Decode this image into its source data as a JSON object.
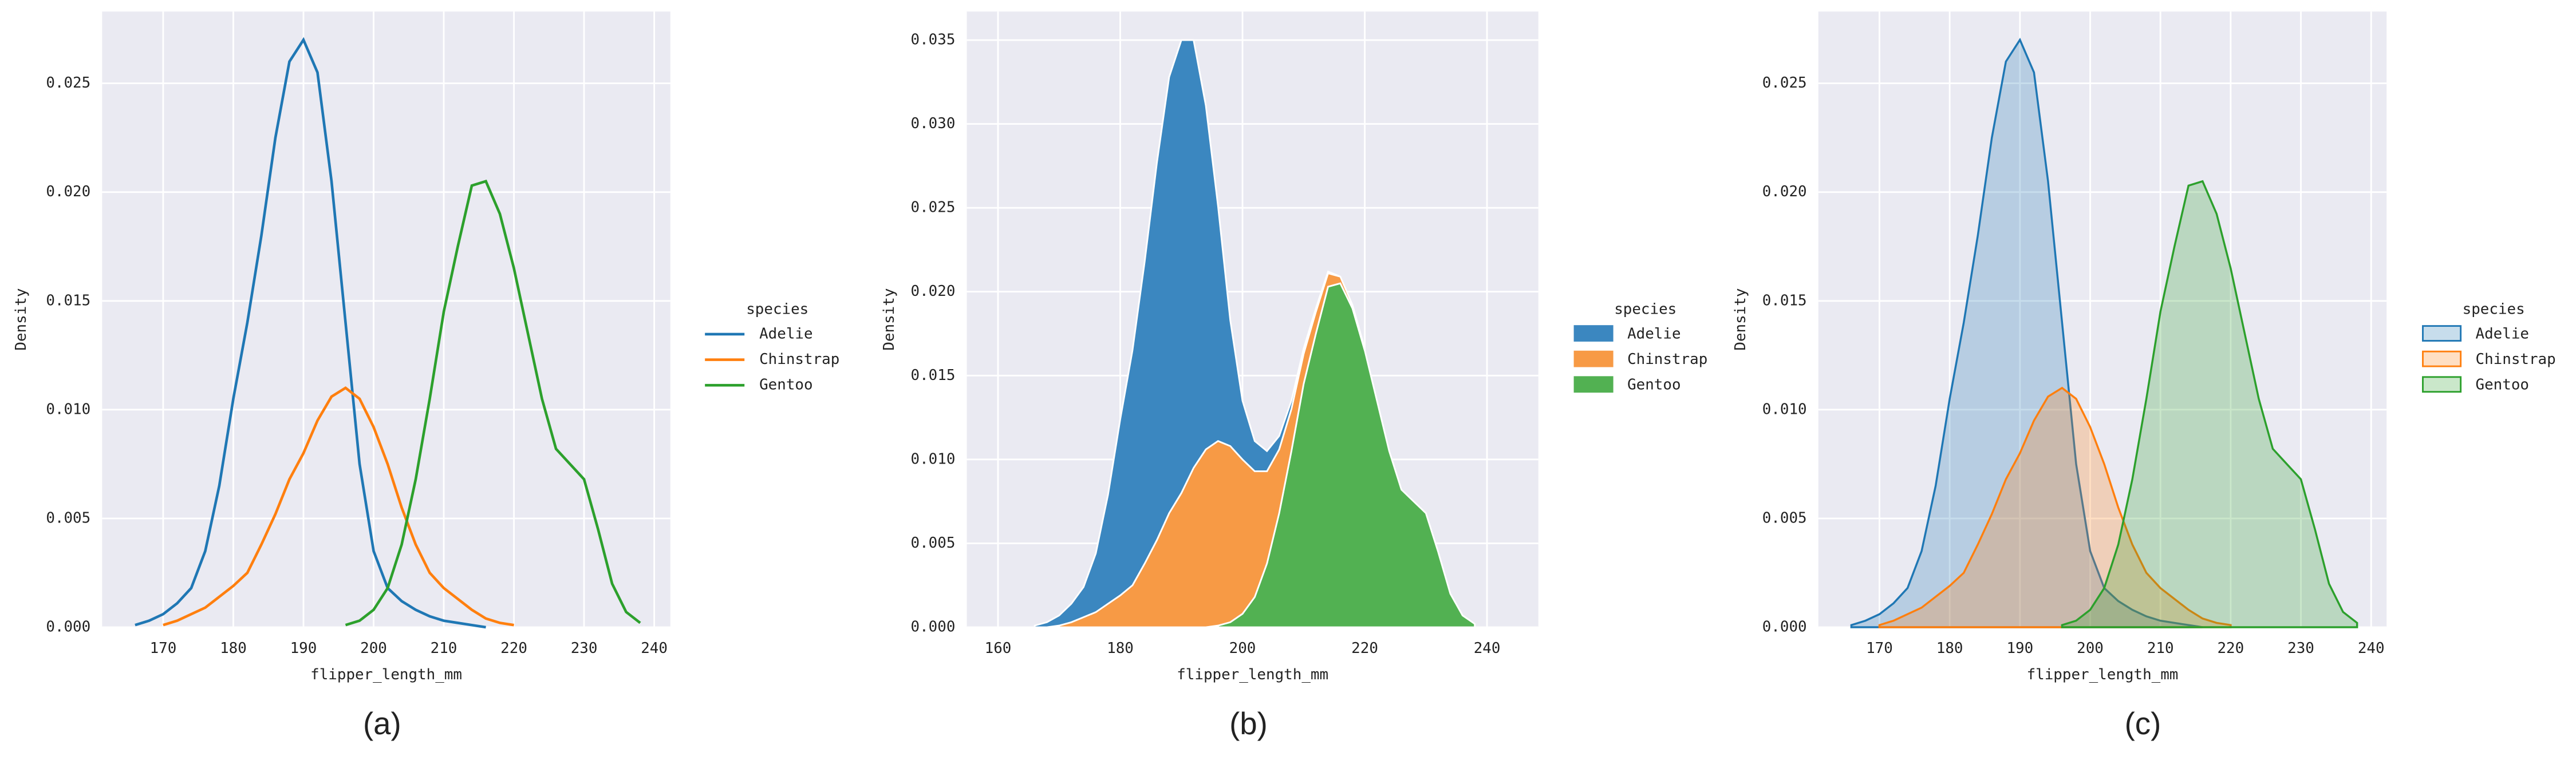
{
  "chart_data": [
    {
      "type": "line",
      "caption": "(a)",
      "x_label": "flipper_length_mm",
      "y_label": "Density",
      "legend_title": "species",
      "legend": "outside-right",
      "grid": true,
      "x": [
        164,
        166,
        168,
        170,
        172,
        174,
        176,
        178,
        180,
        182,
        184,
        186,
        188,
        190,
        192,
        194,
        196,
        198,
        200,
        202,
        204,
        206,
        208,
        210,
        212,
        214,
        216,
        218,
        220,
        222,
        224,
        226,
        228,
        230,
        232,
        234,
        236,
        238,
        240
      ],
      "series": [
        {
          "name": "Adelie",
          "color": "#1f77b4",
          "values": [
            null,
            0.0001,
            0.0003,
            0.0006,
            0.0011,
            0.0018,
            0.0035,
            0.0065,
            0.0105,
            0.014,
            0.018,
            0.0225,
            0.026,
            0.027,
            0.0255,
            0.0205,
            0.014,
            0.0075,
            0.0035,
            0.0018,
            0.0012,
            0.0008,
            0.0005,
            0.0003,
            0.0002,
            0.0001,
            0,
            null,
            null,
            null,
            null,
            null,
            null,
            null,
            null,
            null,
            null,
            null,
            null
          ]
        },
        {
          "name": "Chinstrap",
          "color": "#ff7f0e",
          "values": [
            null,
            null,
            null,
            0.0001,
            0.0003,
            0.0006,
            0.0009,
            0.0014,
            0.0019,
            0.0025,
            0.0038,
            0.0052,
            0.0068,
            0.008,
            0.0095,
            0.0106,
            0.011,
            0.0105,
            0.0092,
            0.0075,
            0.0055,
            0.0038,
            0.0025,
            0.0018,
            0.0013,
            0.0008,
            0.0004,
            0.0002,
            0.0001,
            null,
            null,
            null,
            null,
            null,
            null,
            null,
            null,
            null,
            null
          ]
        },
        {
          "name": "Gentoo",
          "color": "#2ca02c",
          "values": [
            null,
            null,
            null,
            null,
            null,
            null,
            null,
            null,
            null,
            null,
            null,
            null,
            null,
            null,
            null,
            null,
            0.0001,
            0.0003,
            0.0008,
            0.0018,
            0.0038,
            0.0068,
            0.0105,
            0.0145,
            0.0175,
            0.0203,
            0.0205,
            0.019,
            0.0165,
            0.0135,
            0.0105,
            0.0082,
            0.0075,
            0.0068,
            0.0045,
            0.002,
            0.0007,
            0.0002,
            null
          ]
        }
      ],
      "xlim": [
        161.3,
        242.3
      ],
      "xticks": [
        170,
        180,
        190,
        200,
        210,
        220,
        230,
        240
      ],
      "ylim": [
        0,
        0.0283
      ],
      "yticks": [
        {
          "value": 0,
          "label": "0.000"
        },
        {
          "value": 0.005,
          "label": "0.005"
        },
        {
          "value": 0.01,
          "label": "0.010"
        },
        {
          "value": 0.015,
          "label": "0.015"
        },
        {
          "value": 0.02,
          "label": "0.020"
        },
        {
          "value": 0.025,
          "label": "0.025"
        }
      ]
    },
    {
      "type": "stacked_area",
      "caption": "(b)",
      "x_label": "flipper_length_mm",
      "y_label": "Density",
      "legend_title": "species",
      "legend": "outside-right",
      "grid": true,
      "x": [
        164,
        166,
        168,
        170,
        172,
        174,
        176,
        178,
        180,
        182,
        184,
        186,
        188,
        190,
        192,
        194,
        196,
        198,
        200,
        202,
        204,
        206,
        208,
        210,
        212,
        214,
        216,
        218,
        220,
        222,
        224,
        226,
        228,
        230,
        232,
        234,
        236,
        238,
        240
      ],
      "series": [
        {
          "name": "Adelie",
          "color": "#3b87c0",
          "values": [
            null,
            0.0001,
            0.0003,
            0.0006,
            0.0011,
            0.0018,
            0.0035,
            0.0065,
            0.0105,
            0.014,
            0.018,
            0.0225,
            0.026,
            0.027,
            0.0255,
            0.0205,
            0.014,
            0.0075,
            0.0035,
            0.0018,
            0.0012,
            0.0008,
            0.0005,
            0.0003,
            0.0002,
            0.0001,
            0,
            null,
            null,
            null,
            null,
            null,
            null,
            null,
            null,
            null,
            null,
            null,
            null
          ]
        },
        {
          "name": "Chinstrap",
          "color": "#f79a45",
          "values": [
            null,
            null,
            null,
            0.0001,
            0.0003,
            0.0006,
            0.0009,
            0.0014,
            0.0019,
            0.0025,
            0.0038,
            0.0052,
            0.0068,
            0.008,
            0.0095,
            0.0106,
            0.011,
            0.0105,
            0.0092,
            0.0075,
            0.0055,
            0.0038,
            0.0025,
            0.0018,
            0.0013,
            0.0008,
            0.0004,
            0.0002,
            0.0001,
            null,
            null,
            null,
            null,
            null,
            null,
            null,
            null,
            null,
            null
          ]
        },
        {
          "name": "Gentoo",
          "color": "#52b152",
          "values": [
            null,
            null,
            null,
            null,
            null,
            null,
            null,
            null,
            null,
            null,
            null,
            null,
            null,
            null,
            null,
            null,
            0.0001,
            0.0003,
            0.0008,
            0.0018,
            0.0038,
            0.0068,
            0.0105,
            0.0145,
            0.0175,
            0.0203,
            0.0205,
            0.019,
            0.0165,
            0.0135,
            0.0105,
            0.0082,
            0.0075,
            0.0068,
            0.0045,
            0.002,
            0.0007,
            0.0002,
            null
          ]
        }
      ],
      "xlim": [
        154.9,
        248.4
      ],
      "xticks": [
        160,
        180,
        200,
        220,
        240
      ],
      "ylim": [
        0,
        0.0367
      ],
      "yticks": [
        {
          "value": 0,
          "label": "0.000"
        },
        {
          "value": 0.005,
          "label": "0.005"
        },
        {
          "value": 0.01,
          "label": "0.010"
        },
        {
          "value": 0.015,
          "label": "0.015"
        },
        {
          "value": 0.02,
          "label": "0.020"
        },
        {
          "value": 0.025,
          "label": "0.025"
        },
        {
          "value": 0.03,
          "label": "0.030"
        },
        {
          "value": 0.035,
          "label": "0.035"
        }
      ]
    },
    {
      "type": "area",
      "caption": "(c)",
      "x_label": "flipper_length_mm",
      "y_label": "Density",
      "legend_title": "species",
      "legend": "outside-right",
      "grid": true,
      "x": [
        164,
        166,
        168,
        170,
        172,
        174,
        176,
        178,
        180,
        182,
        184,
        186,
        188,
        190,
        192,
        194,
        196,
        198,
        200,
        202,
        204,
        206,
        208,
        210,
        212,
        214,
        216,
        218,
        220,
        222,
        224,
        226,
        228,
        230,
        232,
        234,
        236,
        238,
        240
      ],
      "series": [
        {
          "name": "Adelie",
          "color": "#1f77b4",
          "values": [
            null,
            0.0001,
            0.0003,
            0.0006,
            0.0011,
            0.0018,
            0.0035,
            0.0065,
            0.0105,
            0.014,
            0.018,
            0.0225,
            0.026,
            0.027,
            0.0255,
            0.0205,
            0.014,
            0.0075,
            0.0035,
            0.0018,
            0.0012,
            0.0008,
            0.0005,
            0.0003,
            0.0002,
            0.0001,
            0,
            null,
            null,
            null,
            null,
            null,
            null,
            null,
            null,
            null,
            null,
            null,
            null
          ]
        },
        {
          "name": "Chinstrap",
          "color": "#ff7f0e",
          "values": [
            null,
            null,
            null,
            0.0001,
            0.0003,
            0.0006,
            0.0009,
            0.0014,
            0.0019,
            0.0025,
            0.0038,
            0.0052,
            0.0068,
            0.008,
            0.0095,
            0.0106,
            0.011,
            0.0105,
            0.0092,
            0.0075,
            0.0055,
            0.0038,
            0.0025,
            0.0018,
            0.0013,
            0.0008,
            0.0004,
            0.0002,
            0.0001,
            null,
            null,
            null,
            null,
            null,
            null,
            null,
            null,
            null,
            null
          ]
        },
        {
          "name": "Gentoo",
          "color": "#2ca02c",
          "values": [
            null,
            null,
            null,
            null,
            null,
            null,
            null,
            null,
            null,
            null,
            null,
            null,
            null,
            null,
            null,
            null,
            0.0001,
            0.0003,
            0.0008,
            0.0018,
            0.0038,
            0.0068,
            0.0105,
            0.0145,
            0.0175,
            0.0203,
            0.0205,
            0.019,
            0.0165,
            0.0135,
            0.0105,
            0.0082,
            0.0075,
            0.0068,
            0.0045,
            0.002,
            0.0007,
            0.0002,
            null
          ]
        }
      ],
      "xlim": [
        161.3,
        242.2
      ],
      "xticks": [
        170,
        180,
        190,
        200,
        210,
        220,
        230,
        240
      ],
      "ylim": [
        0,
        0.0283
      ],
      "yticks": [
        {
          "value": 0,
          "label": "0.000"
        },
        {
          "value": 0.005,
          "label": "0.005"
        },
        {
          "value": 0.01,
          "label": "0.010"
        },
        {
          "value": 0.015,
          "label": "0.015"
        },
        {
          "value": 0.02,
          "label": "0.020"
        },
        {
          "value": 0.025,
          "label": "0.025"
        }
      ]
    }
  ]
}
